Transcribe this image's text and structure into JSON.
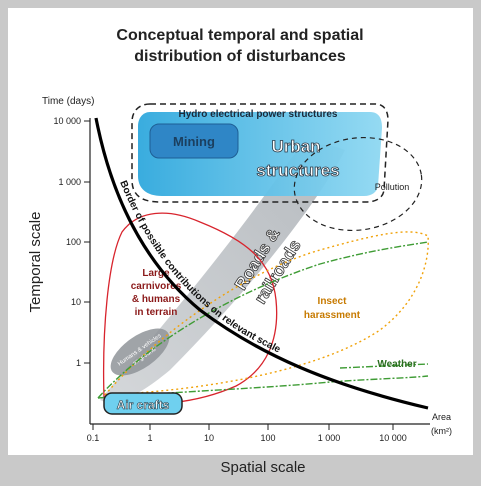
{
  "title": {
    "line1": "Conceptual temporal and spatial",
    "line2": "distribution of disturbances"
  },
  "axes": {
    "y_unit_label": "Time (days)",
    "y_title": "Temporal scale",
    "x_title": "Spatial scale",
    "x_unit_line1": "Area",
    "x_unit_line2": "(km²)",
    "y_ticks": [
      "10 000",
      "1 000",
      "100",
      "10",
      "1"
    ],
    "x_ticks": [
      "0.1",
      "1",
      "10",
      "100",
      "1 000",
      "10 000"
    ]
  },
  "regions": {
    "hydro": "Hydro electrical power structures",
    "mining": "Mining",
    "urban_line1": "Urban",
    "urban_line2": "structures",
    "pollution": "Pollution",
    "roads_line1": "Roads &",
    "roads_line2": "railroads",
    "carnivores_line1": "Large",
    "carnivores_line2": "carnivores",
    "carnivores_line3": "& humans",
    "carnivores_line4": "in terrain",
    "humans_vehicles_line1": "Humans & vehicles",
    "humans_vehicles_line2": "on ground",
    "insect_line1": "Insect",
    "insect_line2": "harassment",
    "weather": "Weather",
    "aircrafts": "Air crafts"
  },
  "border_curve_label": "Border of possible contributions on relevant scale",
  "colors": {
    "background": "#c9c9c9",
    "panel": "#ffffff",
    "hydro_fill": "#5ec3e8",
    "mining_fill": "#2f86c6",
    "road_fill": "#b9bec2",
    "carnivore_line": "#d8242d",
    "carnivore_text": "#8b1a1a",
    "insect_line": "#f0a20a",
    "insect_text": "#c77a00",
    "weather_line": "#3f9c35",
    "weather_text": "#2a6e1f",
    "aircraft_fill": "#6fd0ef"
  }
}
